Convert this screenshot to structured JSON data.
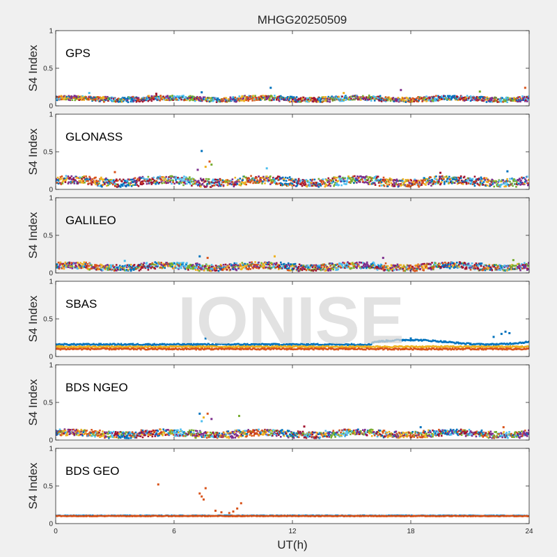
{
  "chart_data": {
    "type": "scatter",
    "title": "MHGG20250509",
    "xlabel": "UT(h)",
    "ylabel": "S4 Index",
    "xlim": [
      0,
      24
    ],
    "ylim": [
      0,
      1
    ],
    "x_ticks": [
      "0",
      "6",
      "12",
      "18",
      "24"
    ],
    "y_ticks": [
      "0",
      "0.5",
      "1"
    ],
    "watermark": "IONISE",
    "grid": false,
    "colors": [
      "#0072BD",
      "#D95319",
      "#EDB120",
      "#7E2F8E",
      "#77AC30",
      "#4DBEEE",
      "#A2142F"
    ],
    "panels": [
      {
        "label": "GPS",
        "background": "#ffffff",
        "baseline": 0.09,
        "spread": 0.03,
        "n_series": 7,
        "spikes": [
          [
            10.9,
            0.24
          ],
          [
            23.8,
            0.24
          ],
          [
            14.6,
            0.17
          ],
          [
            17.5,
            0.21
          ],
          [
            21.5,
            0.19
          ],
          [
            1.7,
            0.17
          ],
          [
            5.1,
            0.16
          ],
          [
            7.4,
            0.18
          ]
        ]
      },
      {
        "label": "GLONASS",
        "background": "#ffffff",
        "baseline": 0.1,
        "spread": 0.05,
        "n_series": 7,
        "spikes": [
          [
            7.4,
            0.51
          ],
          [
            7.8,
            0.37
          ],
          [
            7.6,
            0.3
          ],
          [
            7.2,
            0.26
          ],
          [
            7.9,
            0.33
          ],
          [
            10.7,
            0.28
          ],
          [
            19.5,
            0.22
          ],
          [
            22.9,
            0.24
          ],
          [
            3.0,
            0.23
          ]
        ]
      },
      {
        "label": "GALILEO",
        "background": "#f0f0f0",
        "baseline": 0.08,
        "spread": 0.04,
        "n_series": 7,
        "spikes": [
          [
            7.3,
            0.22
          ],
          [
            7.7,
            0.2
          ],
          [
            11.1,
            0.22
          ],
          [
            16.6,
            0.2
          ],
          [
            23.2,
            0.17
          ],
          [
            3.5,
            0.16
          ]
        ]
      },
      {
        "label": "SBAS",
        "background": "#ffffff",
        "baseline": 0.12,
        "spread": 0.02,
        "n_series": 3,
        "bands": [
          {
            "color": "#0072BD",
            "level": 0.16
          },
          {
            "color": "#EDB120",
            "level": 0.13
          },
          {
            "color": "#D95319",
            "level": 0.1
          }
        ],
        "spikes": [
          [
            22.8,
            0.33
          ],
          [
            22.6,
            0.3
          ],
          [
            23.0,
            0.31
          ],
          [
            18.0,
            0.24
          ],
          [
            17.6,
            0.22
          ],
          [
            7.6,
            0.24
          ],
          [
            22.2,
            0.26
          ]
        ]
      },
      {
        "label": "BDS NGEO",
        "background": "#ffffff",
        "baseline": 0.08,
        "spread": 0.04,
        "n_series": 7,
        "spikes": [
          [
            7.3,
            0.35
          ],
          [
            7.7,
            0.35
          ],
          [
            7.5,
            0.3
          ],
          [
            7.9,
            0.28
          ],
          [
            9.3,
            0.32
          ],
          [
            7.4,
            0.25
          ],
          [
            12.6,
            0.18
          ],
          [
            18.5,
            0.17
          ],
          [
            22.7,
            0.17
          ]
        ]
      },
      {
        "label": "BDS GEO",
        "background": "#ffffff",
        "baseline": 0.1,
        "spread": 0.01,
        "n_series": 2,
        "bands": [
          {
            "color": "#0072BD",
            "level": 0.105
          },
          {
            "color": "#D95319",
            "level": 0.1
          }
        ],
        "spikes": [
          [
            5.2,
            0.52
          ],
          [
            7.6,
            0.47
          ],
          [
            7.3,
            0.4
          ],
          [
            7.4,
            0.36
          ],
          [
            7.5,
            0.32
          ],
          [
            9.4,
            0.27
          ],
          [
            9.2,
            0.2
          ],
          [
            8.1,
            0.17
          ],
          [
            8.4,
            0.15
          ],
          [
            8.8,
            0.14
          ],
          [
            9.0,
            0.16
          ]
        ]
      }
    ]
  }
}
